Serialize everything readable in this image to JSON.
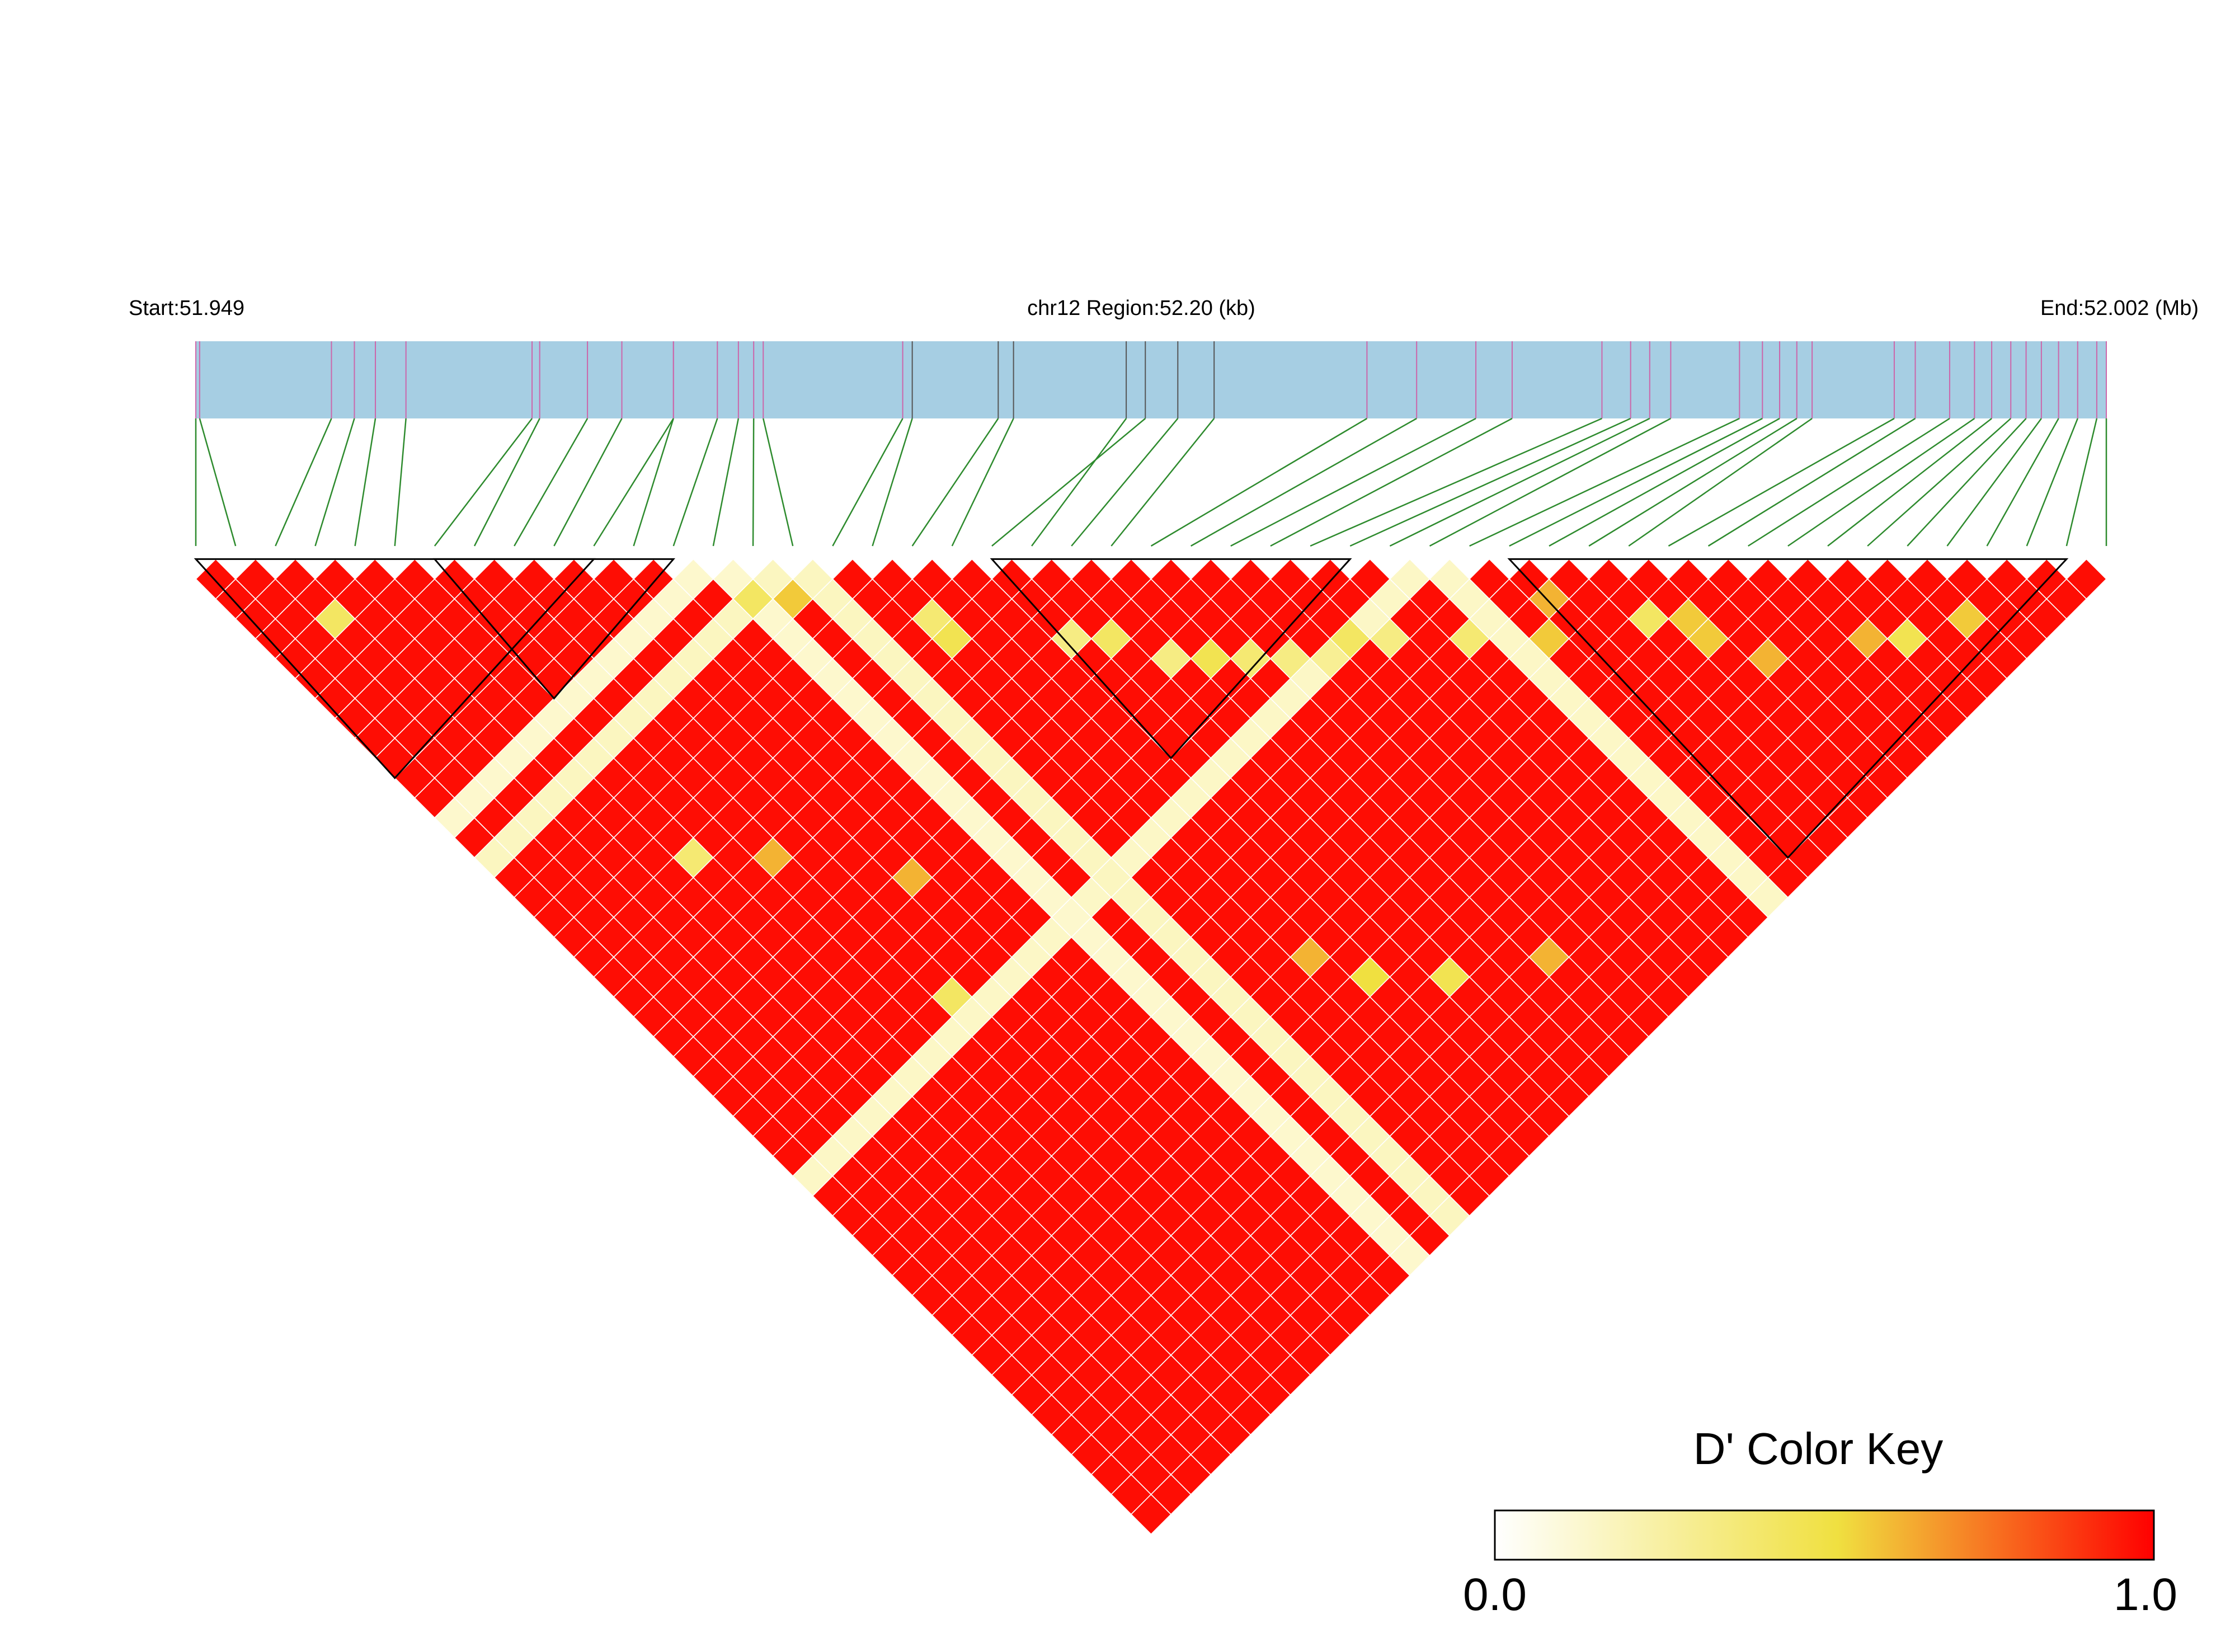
{
  "header": {
    "start_label": "Start:51.949",
    "region_label": "chr12 Region:52.20 (kb)",
    "end_label": "End:52.002 (Mb)"
  },
  "colors": {
    "track_fill": "#a6cee3",
    "marker_line": "#cc66aa",
    "marker_line_alt": "#555555",
    "connector": "#2e8b2e",
    "block_outline": "#000000",
    "low": "#fffde8",
    "mid": "#f0e040",
    "high": "#ff0000"
  },
  "color_key": {
    "title": "D' Color Key",
    "min_label": "0.0",
    "max_label": "1.0"
  },
  "chart_data": {
    "type": "heatmap",
    "subtype": "ld-triangle",
    "statistic": "D'",
    "chromosome": "chr12",
    "start_mb": 51.949,
    "end_mb": 52.002,
    "region_kb": 52.2,
    "n_snps": 49,
    "snp_relative_positions": [
      0.0,
      0.002,
      0.071,
      0.083,
      0.094,
      0.11,
      0.176,
      0.18,
      0.205,
      0.223,
      0.25,
      0.25,
      0.273,
      0.284,
      0.292,
      0.297,
      0.37,
      0.375,
      0.42,
      0.428,
      0.497,
      0.487,
      0.514,
      0.533,
      0.613,
      0.639,
      0.67,
      0.689,
      0.736,
      0.751,
      0.761,
      0.772,
      0.808,
      0.82,
      0.829,
      0.838,
      0.846,
      0.889,
      0.9,
      0.918,
      0.931,
      0.94,
      0.95,
      0.958,
      0.966,
      0.975,
      0.985,
      0.995,
      1.0
    ],
    "color_scale": {
      "min": 0.0,
      "max": 1.0
    },
    "default_dprime": 0.97,
    "low_ld_snps": [
      {
        "snp": 13,
        "dprime": 0.08
      },
      {
        "snp": 15,
        "dprime": 0.12
      },
      {
        "snp": 31,
        "dprime": 0.1
      }
    ],
    "pair_overrides": [
      {
        "i": 2,
        "j": 5,
        "dprime": 0.4
      },
      {
        "i": 13,
        "j": 15,
        "dprime": 0.4
      },
      {
        "i": 14,
        "j": 16,
        "dprime": 0.55
      },
      {
        "i": 17,
        "j": 20,
        "dprime": 0.35
      },
      {
        "i": 17,
        "j": 21,
        "dprime": 0.45
      },
      {
        "i": 20,
        "j": 24,
        "dprime": 0.3
      },
      {
        "i": 21,
        "j": 25,
        "dprime": 0.4
      },
      {
        "i": 22,
        "j": 27,
        "dprime": 0.3
      },
      {
        "i": 23,
        "j": 28,
        "dprime": 0.45
      },
      {
        "i": 24,
        "j": 29,
        "dprime": 0.35
      },
      {
        "i": 25,
        "j": 30,
        "dprime": 0.3
      },
      {
        "i": 26,
        "j": 31,
        "dprime": 0.25
      },
      {
        "i": 27,
        "j": 31,
        "dprime": 0.4
      },
      {
        "i": 28,
        "j": 32,
        "dprime": 0.3
      },
      {
        "i": 30,
        "j": 34,
        "dprime": 0.35
      },
      {
        "i": 32,
        "j": 36,
        "dprime": 0.55
      },
      {
        "i": 35,
        "j": 38,
        "dprime": 0.4
      },
      {
        "i": 36,
        "j": 40,
        "dprime": 0.55
      },
      {
        "i": 37,
        "j": 42,
        "dprime": 0.6
      },
      {
        "i": 41,
        "j": 45,
        "dprime": 0.45
      },
      {
        "i": 43,
        "j": 46,
        "dprime": 0.55
      },
      {
        "i": 10,
        "j": 26,
        "dprime": 0.6
      },
      {
        "i": 7,
        "j": 22,
        "dprime": 0.6
      },
      {
        "i": 5,
        "j": 20,
        "dprime": 0.35
      },
      {
        "i": 8,
        "j": 30,
        "dprime": 0.4
      },
      {
        "i": 18,
        "j": 38,
        "dprime": 0.6
      },
      {
        "i": 19,
        "j": 40,
        "dprime": 0.5
      },
      {
        "i": 21,
        "j": 42,
        "dprime": 0.45
      },
      {
        "i": 24,
        "j": 44,
        "dprime": 0.6
      },
      {
        "i": 40,
        "j": 44,
        "dprime": 0.6
      },
      {
        "i": 33,
        "j": 35,
        "dprime": 0.6
      },
      {
        "i": 36,
        "j": 39,
        "dprime": 0.55
      }
    ],
    "ld_blocks": [
      {
        "first_snp": 0,
        "last_snp": 10
      },
      {
        "first_snp": 6,
        "last_snp": 12
      },
      {
        "first_snp": 20,
        "last_snp": 29
      },
      {
        "first_snp": 33,
        "last_snp": 47
      }
    ]
  }
}
